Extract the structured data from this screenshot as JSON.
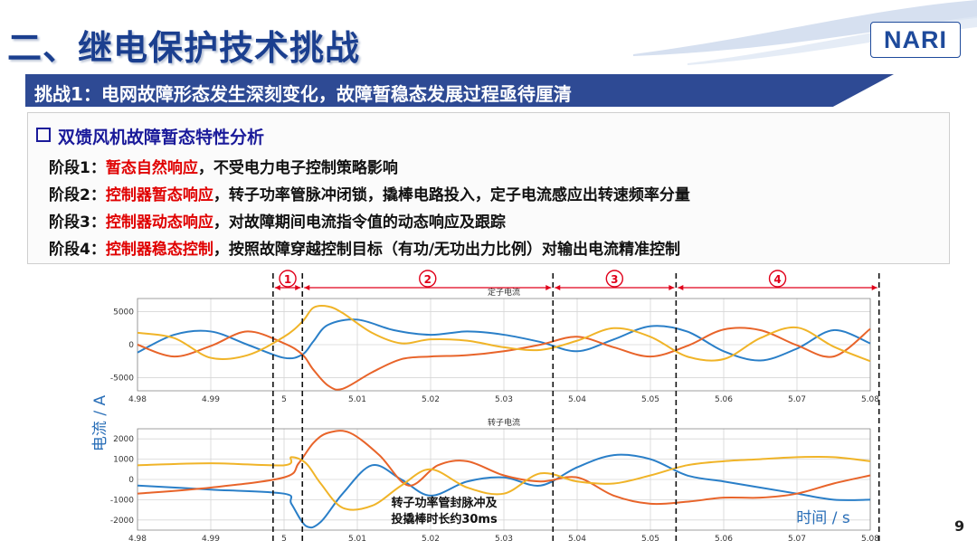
{
  "header": {
    "title": "二、继电保护技术挑战",
    "logo": "NARI"
  },
  "banner": {
    "text": "挑战1：电网故障形态发生深刻变化，故障暂稳态发展过程亟待厘清"
  },
  "analysis": {
    "heading": "双馈风机故障暂态特性分析",
    "stages": [
      {
        "prefix": "阶段1：",
        "highlight": "暂态自然响应",
        "rest": "，不受电力电子控制策略影响"
      },
      {
        "prefix": "阶段2：",
        "highlight": "控制器暂态响应",
        "rest": "，转子功率管脉冲闭锁，撬棒电路投入，定子电流感应出转速频率分量"
      },
      {
        "prefix": "阶段3：",
        "highlight": "控制器动态响应",
        "rest": "，对故障期间电流指令值的动态响应及跟踪"
      },
      {
        "prefix": "阶段4：",
        "highlight": "控制器稳态控制",
        "rest": "，按照故障穿越控制目标（有功/无功出力比例）对输出电流精准控制"
      }
    ]
  },
  "chart": {
    "stage_markers": [
      "①",
      "②",
      "③",
      "④"
    ],
    "ylabel": "电流 / A",
    "xlabel": "时间 / s",
    "annotation_line1": "转子功率管封脉冲及",
    "annotation_line2": "投撬棒时长约30ms",
    "page_number": "9"
  },
  "chart_data": [
    {
      "type": "line",
      "title": "定子电流",
      "x_ticks": [
        "4.98",
        "4.99",
        "5",
        "5.01",
        "5.02",
        "5.03",
        "5.04",
        "5.05",
        "5.06",
        "5.07",
        "5.08"
      ],
      "xlim": [
        4.98,
        5.08
      ],
      "y_ticks": [
        "5000",
        "0",
        "-5000"
      ],
      "ylim": [
        -7000,
        7000
      ],
      "stage_boundaries": [
        4.9985,
        5.0025,
        5.0367,
        5.0535,
        5.0812
      ],
      "series": [
        {
          "color": "#2a7fc8",
          "x": [
            4.98,
            4.985,
            4.99,
            4.995,
            5.0,
            5.0025,
            5.004,
            5.006,
            5.01,
            5.015,
            5.02,
            5.025,
            5.03,
            5.035,
            5.04,
            5.045,
            5.05,
            5.055,
            5.06,
            5.065,
            5.07,
            5.075,
            5.08
          ],
          "y": [
            -1200,
            1500,
            2000,
            0,
            -2000,
            -1500,
            500,
            3000,
            3800,
            2200,
            1500,
            2000,
            1500,
            400,
            -1000,
            800,
            2800,
            2000,
            -1000,
            -2400,
            -600,
            2200,
            200
          ]
        },
        {
          "color": "#e8642a",
          "x": [
            4.98,
            4.985,
            4.99,
            4.995,
            5.0,
            5.0025,
            5.004,
            5.006,
            5.008,
            5.012,
            5.016,
            5.02,
            5.025,
            5.03,
            5.035,
            5.04,
            5.045,
            5.05,
            5.055,
            5.06,
            5.065,
            5.07,
            5.075,
            5.08
          ],
          "y": [
            0,
            -1800,
            -200,
            2000,
            200,
            -1500,
            -3800,
            -6200,
            -6700,
            -4200,
            -2200,
            -1800,
            -1600,
            -1000,
            0,
            1200,
            -400,
            -1800,
            -200,
            2300,
            2200,
            -100,
            -1800,
            2400
          ]
        },
        {
          "color": "#f0b428",
          "x": [
            4.98,
            4.985,
            4.99,
            4.995,
            5.0,
            5.0025,
            5.004,
            5.006,
            5.008,
            5.012,
            5.016,
            5.02,
            5.025,
            5.03,
            5.035,
            5.04,
            5.045,
            5.05,
            5.055,
            5.06,
            5.065,
            5.07,
            5.075,
            5.08
          ],
          "y": [
            1800,
            1000,
            -2000,
            -1600,
            1200,
            3500,
            5600,
            5800,
            4800,
            1800,
            200,
            800,
            600,
            -400,
            -800,
            600,
            2500,
            1200,
            -1800,
            -2200,
            1000,
            2600,
            -300,
            -2500
          ]
        }
      ]
    },
    {
      "type": "line",
      "title": "转子电流",
      "x_ticks": [
        "4.98",
        "4.99",
        "5",
        "5.01",
        "5.02",
        "5.03",
        "5.04",
        "5.05",
        "5.06",
        "5.07",
        "5.08"
      ],
      "xlim": [
        4.98,
        5.08
      ],
      "y_ticks": [
        "2000",
        "1000",
        "0",
        "-1000",
        "-2000"
      ],
      "ylim": [
        -2500,
        2500
      ],
      "series": [
        {
          "color": "#2a7fc8",
          "x": [
            4.98,
            4.99,
            5.0,
            5.001,
            5.003,
            5.005,
            5.008,
            5.012,
            5.016,
            5.02,
            5.025,
            5.03,
            5.035,
            5.04,
            5.045,
            5.05,
            5.055,
            5.06,
            5.065,
            5.07,
            5.075,
            5.08
          ],
          "y": [
            -300,
            -500,
            -700,
            -1200,
            -2300,
            -2100,
            -700,
            700,
            0,
            -800,
            -100,
            100,
            -300,
            600,
            1200,
            1000,
            200,
            -100,
            -400,
            -700,
            -1000,
            -1000
          ]
        },
        {
          "color": "#e8642a",
          "x": [
            4.98,
            4.99,
            5.0,
            5.002,
            5.004,
            5.006,
            5.009,
            5.013,
            5.017,
            5.021,
            5.025,
            5.03,
            5.035,
            5.04,
            5.045,
            5.05,
            5.055,
            5.06,
            5.065,
            5.07,
            5.075,
            5.08
          ],
          "y": [
            -700,
            -400,
            100,
            800,
            1800,
            2300,
            2300,
            1200,
            -300,
            700,
            900,
            200,
            -100,
            100,
            -800,
            -1200,
            -1100,
            -900,
            -900,
            -700,
            -200,
            200
          ]
        },
        {
          "color": "#f0b428",
          "x": [
            4.98,
            4.99,
            5.0,
            5.001,
            5.003,
            5.005,
            5.008,
            5.012,
            5.016,
            5.02,
            5.025,
            5.03,
            5.035,
            5.04,
            5.045,
            5.05,
            5.055,
            5.06,
            5.065,
            5.07,
            5.075,
            5.08
          ],
          "y": [
            700,
            800,
            700,
            1100,
            800,
            -200,
            -1400,
            -1300,
            -300,
            500,
            -400,
            -700,
            300,
            -100,
            -200,
            200,
            700,
            900,
            1000,
            1100,
            1100,
            900
          ]
        }
      ]
    }
  ]
}
